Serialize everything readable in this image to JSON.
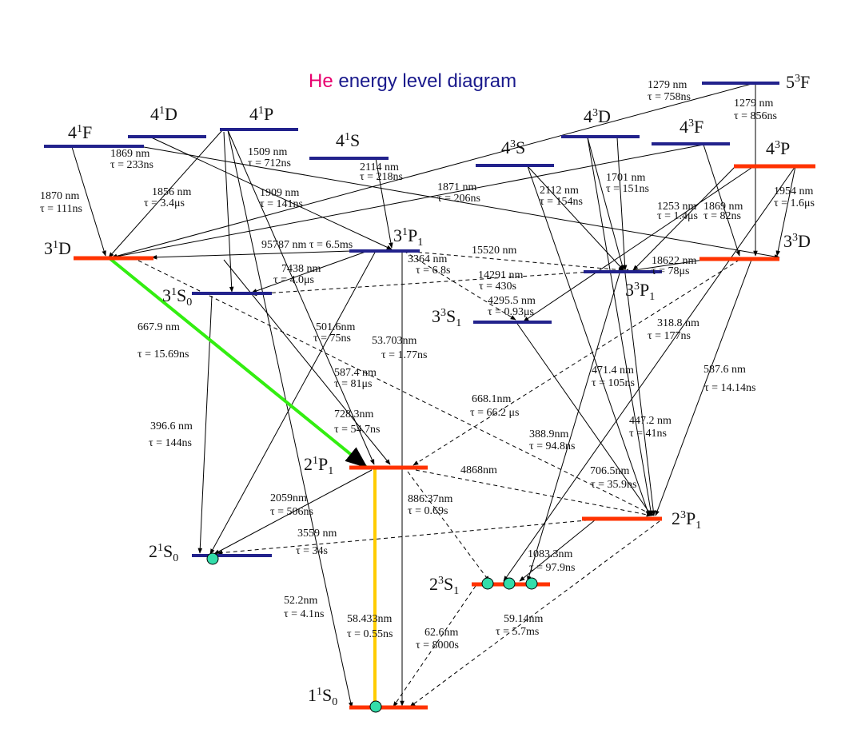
{
  "title": {
    "element": "He",
    "rest": "energy level diagram"
  },
  "colors": {
    "singlet_level": "#22228c",
    "triplet_level": "#ff3300",
    "green_line": "#33ee11",
    "yellow_line": "#ffcc00",
    "dot": "#33ddaa"
  },
  "levels": [
    {
      "id": "4_1F",
      "n": "4",
      "sup": "1",
      "L": "F",
      "sub": ""
    },
    {
      "id": "4_1D",
      "n": "4",
      "sup": "1",
      "L": "D",
      "sub": ""
    },
    {
      "id": "4_1P",
      "n": "4",
      "sup": "1",
      "L": "P",
      "sub": ""
    },
    {
      "id": "4_1S",
      "n": "4",
      "sup": "1",
      "L": "S",
      "sub": ""
    },
    {
      "id": "3_1D",
      "n": "3",
      "sup": "1",
      "L": "D",
      "sub": ""
    },
    {
      "id": "3_1P1",
      "n": "3",
      "sup": "1",
      "L": "P",
      "sub": "1"
    },
    {
      "id": "3_1S0",
      "n": "3",
      "sup": "1",
      "L": "S",
      "sub": "0"
    },
    {
      "id": "2_1P1",
      "n": "2",
      "sup": "1",
      "L": "P",
      "sub": "1"
    },
    {
      "id": "2_1S0",
      "n": "2",
      "sup": "1",
      "L": "S",
      "sub": "0"
    },
    {
      "id": "1_1S0",
      "n": "1",
      "sup": "1",
      "L": "S",
      "sub": "0"
    },
    {
      "id": "5_3F",
      "n": "5",
      "sup": "3",
      "L": "F",
      "sub": ""
    },
    {
      "id": "4_3D",
      "n": "4",
      "sup": "3",
      "L": "D",
      "sub": ""
    },
    {
      "id": "4_3F",
      "n": "4",
      "sup": "3",
      "L": "F",
      "sub": ""
    },
    {
      "id": "4_3S",
      "n": "4",
      "sup": "3",
      "L": "S",
      "sub": ""
    },
    {
      "id": "4_3P",
      "n": "4",
      "sup": "3",
      "L": "P",
      "sub": ""
    },
    {
      "id": "3_3D",
      "n": "3",
      "sup": "3",
      "L": "D",
      "sub": ""
    },
    {
      "id": "3_3P1",
      "n": "3",
      "sup": "3",
      "L": "P",
      "sub": "1"
    },
    {
      "id": "3_3S1",
      "n": "3",
      "sup": "3",
      "L": "S",
      "sub": "1"
    },
    {
      "id": "2_3P1",
      "n": "2",
      "sup": "3",
      "L": "P",
      "sub": "1"
    },
    {
      "id": "2_3S1",
      "n": "2",
      "sup": "3",
      "L": "S",
      "sub": "1"
    }
  ],
  "labels": [
    "1869 nm",
    "τ = 233ns",
    "1870 nm",
    "τ = 111ns",
    "1856 nm",
    "τ = 3.4μs",
    "1509 nm",
    "τ = 712ns",
    "1909 nm",
    "τ = 141ns",
    "2114 nm",
    "τ = 218ns",
    "1871 nm",
    "τ = 206ns",
    "95787 nm τ = 6.5ms",
    "7438 nm",
    "τ = 4.0μs",
    "3364 nm",
    "τ = 6.8s",
    "15520 nm",
    "14291 nm",
    "τ = 430s",
    "2112 nm",
    "τ = 154ns",
    "1701 nm",
    "τ = 151ns",
    "1253 nm",
    "τ = 1.4μs",
    "1869 nm",
    "τ = 82ns",
    "1954 nm",
    "τ = 1.6μs",
    "1279 nm",
    "τ = 758ns",
    "1279 nm",
    "τ = 856ns",
    "18622 nm",
    "τ = 78μs",
    "4295.5 nm",
    "τ = 0.93μs",
    "667.9 nm",
    "τ = 15.69ns",
    "501.6nm",
    "τ = 75ns",
    "53.703nm",
    "τ = 1.77ns",
    "587.4 nm",
    "τ = 81μs",
    "318.8 nm",
    "τ = 177ns",
    "471.4 nm",
    "τ = 105ns",
    "587.6 nm",
    "τ = 14.14ns",
    "668.1nm",
    "τ = 66.2 μs",
    "447.2 nm",
    "τ = 41ns",
    "396.6 nm",
    "τ = 144ns",
    "728.3nm",
    "τ = 54.7ns",
    "388.9nm",
    "τ = 94.8ns",
    "4868nm",
    "706.5nm",
    "τ = 35.9ns",
    "2059nm",
    "τ = 506ns",
    "886.37nm",
    "τ = 0.69s",
    "3559 nm",
    "τ = 34s",
    "1083.3nm",
    "τ = 97.9ns",
    "52.2nm",
    "τ = 4.1ns",
    "58.433nm",
    "τ = 0.55ns",
    "62.6nm",
    "τ = 8000s",
    "59.14nm",
    "τ = 5.7ms"
  ]
}
